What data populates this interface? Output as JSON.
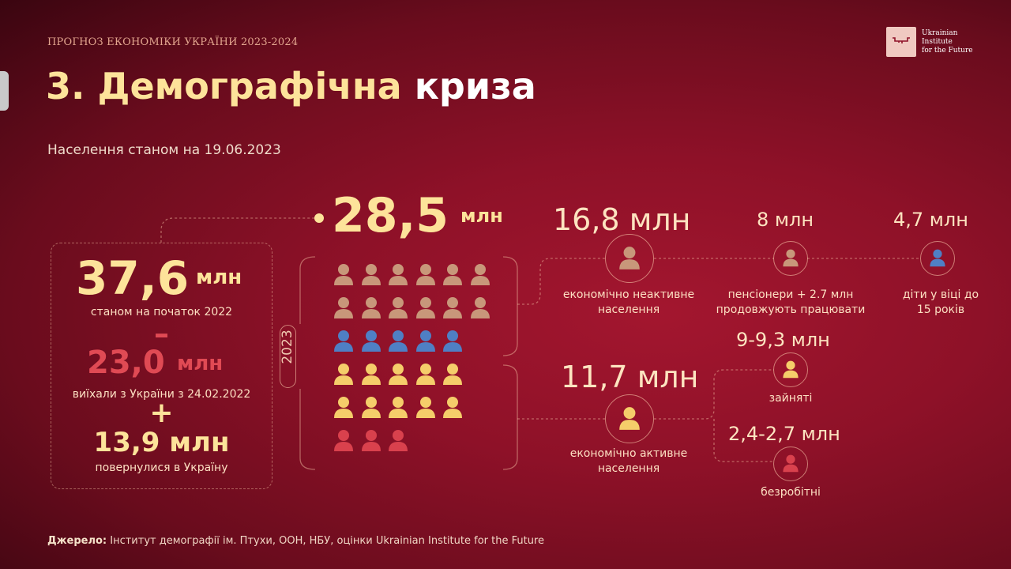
{
  "header": {
    "topline": "ПРОГНОЗ ЕКОНОМІКИ УКРАЇНИ 2023-2024",
    "title_main": "3. Демографічна",
    "title_highlight": "криза",
    "subtitle": "Населення станом на 19.06.2023",
    "logo_lines": [
      "Ukrainian",
      "Institute",
      "for the Future"
    ]
  },
  "left": {
    "total_value": "37,6",
    "total_unit": "млн",
    "total_caption": "станом на початок 2022",
    "minus_sign": "–",
    "left_value": "23,0",
    "left_unit": "млн",
    "left_caption": "виїхали з України з 24.02.2022",
    "plus_sign": "+",
    "returned_value": "13,9 млн",
    "returned_caption": "повернулися в Україну"
  },
  "center": {
    "current_value": "28,5",
    "current_unit": "млн",
    "year": "2023",
    "icon_rows": [
      {
        "count": 6,
        "color": "#c8977a"
      },
      {
        "count": 6,
        "color": "#c8977a"
      },
      {
        "count": 5,
        "color": "#4f7fc4"
      },
      {
        "count": 5,
        "color": "#f5cd6a"
      },
      {
        "count": 5,
        "color": "#f5cd6a"
      },
      {
        "count": 3,
        "color": "#d9414d"
      }
    ]
  },
  "right": {
    "inactive_value": "16,8 млн",
    "inactive_caption": [
      "економічно неактивне",
      "населення"
    ],
    "pensioners_value": "8 млн",
    "pensioners_caption": [
      "пенсіонери + 2.7 млн",
      "продовжують працювати"
    ],
    "children_value": "4,7 млн",
    "children_caption": [
      "діти у віці до",
      "15 років"
    ],
    "active_value": "11,7 млн",
    "active_caption": [
      "економічно активне",
      "населення"
    ],
    "employed_value": "9-9,3 млн",
    "employed_caption": "зайняті",
    "unemployed_value": "2,4-2,7 млн",
    "unemployed_caption": "безробітні"
  },
  "footer": {
    "source_label": "Джерело:",
    "source_text": " Інститут демографії ім. Птухи, ООН, НБУ, оцінки Ukrainian Institute for the Future"
  },
  "colors": {
    "inactive": "#c8977a",
    "children": "#4f7fc4",
    "active": "#f5cd6a",
    "unemployed": "#d9414d",
    "accent_yellow": "#fde39a"
  },
  "icons": {
    "person": "person-icon",
    "logo": "key-icon"
  }
}
